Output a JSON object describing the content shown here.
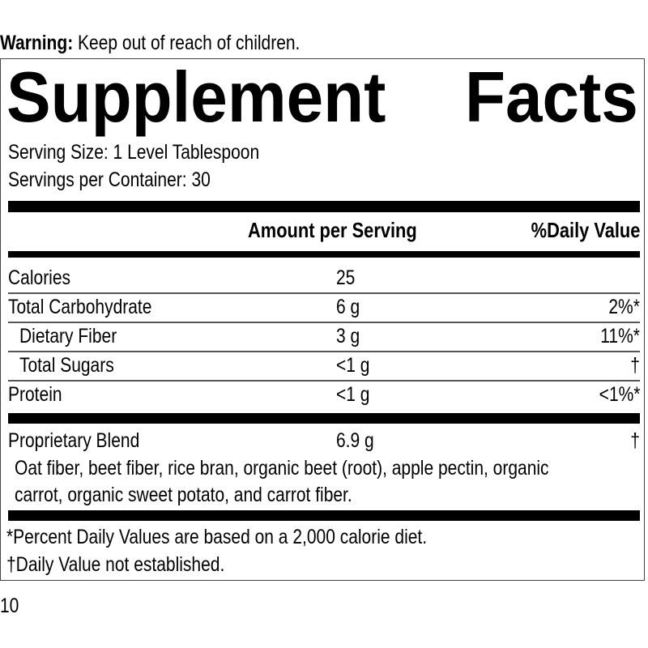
{
  "warning": {
    "label": "Warning:",
    "text": " Keep out of reach of children."
  },
  "label": {
    "title_word1": "Supplement",
    "title_word2": "Facts",
    "serving_size": "Serving Size: 1 Level Tablespoon",
    "servings_per_container": "Servings per Container: 30",
    "header": {
      "amount": "Amount per Serving",
      "dv": "%Daily Value"
    },
    "rows": [
      {
        "name": "Calories",
        "amount": "25",
        "dv": ""
      },
      {
        "name": "Total Carbohydrate",
        "amount": "6 g",
        "dv": "2%*"
      },
      {
        "name": "Dietary Fiber",
        "amount": "3 g",
        "dv": "11%*"
      },
      {
        "name": "Total Sugars",
        "amount": "<1 g",
        "dv": "†"
      },
      {
        "name": "Protein",
        "amount": "<1 g",
        "dv": "<1%*"
      }
    ],
    "blend": {
      "name": "Proprietary Blend",
      "amount": "6.9 g",
      "dv": "†",
      "ingredients_line1": "Oat fiber, beet fiber, rice bran, organic beet (root), apple pectin, organic",
      "ingredients_line2": "carrot, organic sweet potato, and carrot fiber."
    },
    "footnote1": "*Percent Daily Values are based on a 2,000 calorie diet.",
    "footnote2": "†Daily Value not established."
  },
  "page_number": "10"
}
